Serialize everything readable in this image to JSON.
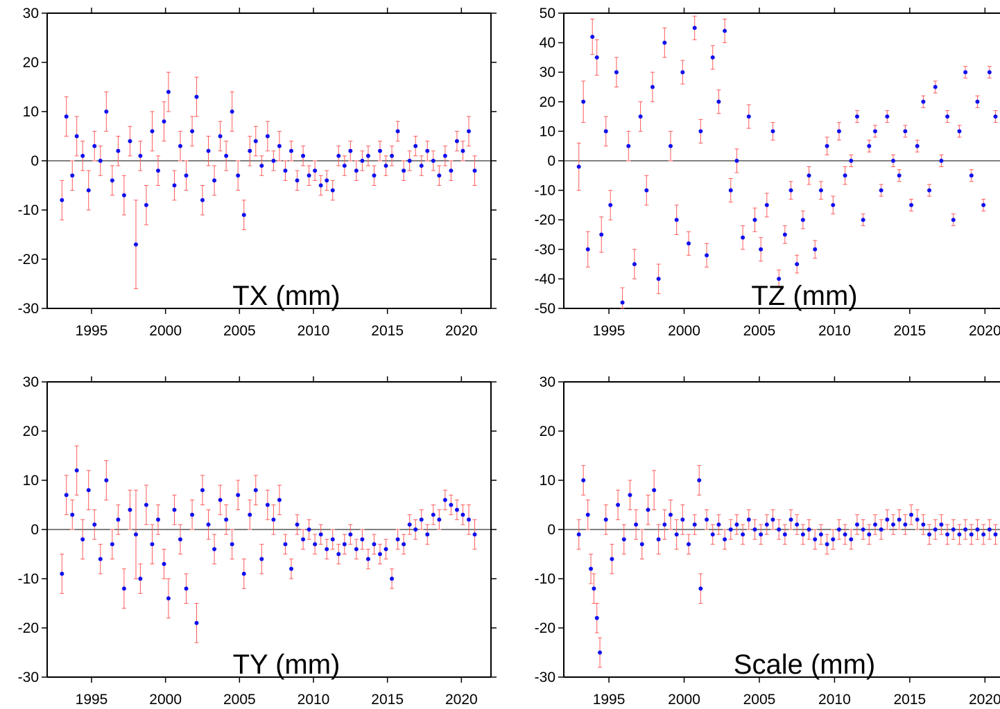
{
  "colors": {
    "point": "#1010ee",
    "error_bar": "#ff5a5a",
    "axis": "#000000",
    "zero_line": "#000000"
  },
  "chart_data": [
    {
      "type": "scatter",
      "title": "TX (mm)",
      "x_range": [
        1992,
        2022
      ],
      "ylim": [
        -30,
        30
      ],
      "y_ticks": [
        30,
        20,
        10,
        0,
        -10,
        -20,
        -30
      ],
      "x_ticks": [
        1995,
        2000,
        2005,
        2010,
        2015,
        2020
      ],
      "zero_line": true,
      "series": [
        {
          "x": [
            1993.0,
            1993.3,
            1993.7,
            1994.0,
            1994.4,
            1994.8,
            1995.2,
            1995.6,
            1996.0,
            1996.4,
            1996.8,
            1997.2,
            1997.6,
            1998.0,
            1998.3,
            1998.7,
            1999.1,
            1999.5,
            1999.9,
            2000.2,
            2000.6,
            2001.0,
            2001.4,
            2001.8,
            2002.1,
            2002.5,
            2002.9,
            2003.3,
            2003.7,
            2004.1,
            2004.5,
            2004.9,
            2005.3,
            2005.7,
            2006.1,
            2006.5,
            2006.9,
            2007.3,
            2007.7,
            2008.1,
            2008.5,
            2008.9,
            2009.3,
            2009.7,
            2010.1,
            2010.5,
            2010.9,
            2011.3,
            2011.7,
            2012.1,
            2012.5,
            2012.9,
            2013.3,
            2013.7,
            2014.1,
            2014.5,
            2014.9,
            2015.3,
            2015.7,
            2016.1,
            2016.5,
            2016.9,
            2017.3,
            2017.7,
            2018.1,
            2018.5,
            2018.9,
            2019.3,
            2019.7,
            2020.1,
            2020.5,
            2020.9
          ],
          "y": [
            -8,
            9,
            -3,
            5,
            1,
            -6,
            3,
            0,
            10,
            -4,
            2,
            -7,
            4,
            -17,
            1,
            -9,
            6,
            -2,
            8,
            14,
            -5,
            3,
            -3,
            6,
            13,
            -8,
            2,
            -4,
            5,
            1,
            10,
            -3,
            -11,
            2,
            4,
            -1,
            5,
            0,
            3,
            -2,
            2,
            -4,
            1,
            -3,
            -2,
            -5,
            -4,
            -6,
            1,
            -1,
            2,
            -2,
            0,
            1,
            -3,
            2,
            -1,
            1,
            6,
            -2,
            0,
            3,
            -1,
            2,
            0,
            -3,
            1,
            -2,
            4,
            2,
            6,
            -2
          ],
          "error": [
            4,
            4,
            3,
            4,
            3,
            4,
            3,
            3,
            4,
            3,
            3,
            4,
            3,
            9,
            3,
            4,
            4,
            3,
            4,
            4,
            3,
            3,
            3,
            3,
            4,
            3,
            3,
            3,
            3,
            3,
            4,
            3,
            3,
            3,
            3,
            2,
            3,
            2,
            3,
            2,
            2,
            2,
            2,
            2,
            2,
            2,
            2,
            2,
            2,
            2,
            2,
            2,
            2,
            2,
            2,
            2,
            2,
            2,
            2,
            2,
            2,
            2,
            2,
            2,
            2,
            2,
            2,
            2,
            2,
            2,
            3,
            3
          ]
        }
      ]
    },
    {
      "type": "scatter",
      "title": "TZ (mm)",
      "x_range": [
        1992,
        2021
      ],
      "ylim": [
        -50,
        50
      ],
      "y_ticks": [
        50,
        40,
        30,
        20,
        10,
        0,
        -10,
        -20,
        -30,
        -40,
        -50
      ],
      "x_ticks": [
        1995,
        2000,
        2005,
        2010,
        2015,
        2020
      ],
      "zero_line": true,
      "series": [
        {
          "x": [
            1993.0,
            1993.3,
            1993.6,
            1993.9,
            1994.2,
            1994.5,
            1994.8,
            1995.1,
            1995.5,
            1995.9,
            1996.3,
            1996.7,
            1997.1,
            1997.5,
            1997.9,
            1998.3,
            1998.7,
            1999.1,
            1999.5,
            1999.9,
            2000.3,
            2000.7,
            2001.1,
            2001.5,
            2001.9,
            2002.3,
            2002.7,
            2003.1,
            2003.5,
            2003.9,
            2004.3,
            2004.7,
            2005.1,
            2005.5,
            2005.9,
            2006.3,
            2006.7,
            2007.1,
            2007.5,
            2007.9,
            2008.3,
            2008.7,
            2009.1,
            2009.5,
            2009.9,
            2010.3,
            2010.7,
            2011.1,
            2011.5,
            2011.9,
            2012.3,
            2012.7,
            2013.1,
            2013.5,
            2013.9,
            2014.3,
            2014.7,
            2015.1,
            2015.5,
            2015.9,
            2016.3,
            2016.7,
            2017.1,
            2017.5,
            2017.9,
            2018.3,
            2018.7,
            2019.1,
            2019.5,
            2019.9,
            2020.3,
            2020.7
          ],
          "y": [
            -2,
            20,
            -30,
            42,
            35,
            -25,
            10,
            -15,
            30,
            -48,
            5,
            -35,
            15,
            -10,
            25,
            -40,
            40,
            5,
            -20,
            30,
            -28,
            45,
            10,
            -32,
            35,
            20,
            44,
            -10,
            0,
            -26,
            15,
            -20,
            -30,
            -15,
            10,
            -40,
            -25,
            -10,
            -35,
            -20,
            -5,
            -30,
            -10,
            5,
            -15,
            10,
            -5,
            0,
            15,
            -20,
            5,
            10,
            -10,
            15,
            0,
            -5,
            10,
            -15,
            5,
            20,
            -10,
            25,
            0,
            15,
            -20,
            10,
            30,
            -5,
            20,
            -15,
            30,
            15
          ],
          "error": [
            8,
            7,
            6,
            6,
            6,
            6,
            5,
            5,
            5,
            5,
            5,
            5,
            5,
            5,
            5,
            5,
            5,
            5,
            5,
            4,
            4,
            4,
            4,
            4,
            4,
            4,
            4,
            4,
            4,
            4,
            4,
            4,
            4,
            4,
            3,
            3,
            3,
            3,
            3,
            3,
            3,
            3,
            3,
            3,
            3,
            3,
            3,
            2,
            2,
            2,
            2,
            2,
            2,
            2,
            2,
            2,
            2,
            2,
            2,
            2,
            2,
            2,
            2,
            2,
            2,
            2,
            2,
            2,
            2,
            2,
            2,
            2
          ]
        }
      ]
    },
    {
      "type": "scatter",
      "title": "TY (mm)",
      "x_range": [
        1992,
        2022
      ],
      "ylim": [
        -30,
        30
      ],
      "y_ticks": [
        30,
        20,
        10,
        0,
        -10,
        -20,
        -30
      ],
      "x_ticks": [
        1995,
        2000,
        2005,
        2010,
        2015,
        2020
      ],
      "zero_line": true,
      "series": [
        {
          "x": [
            1993.0,
            1993.3,
            1993.7,
            1994.0,
            1994.4,
            1994.8,
            1995.2,
            1995.6,
            1996.0,
            1996.4,
            1996.8,
            1997.2,
            1997.6,
            1998.0,
            1998.3,
            1998.7,
            1999.1,
            1999.5,
            1999.9,
            2000.2,
            2000.6,
            2001.0,
            2001.4,
            2001.8,
            2002.1,
            2002.5,
            2002.9,
            2003.3,
            2003.7,
            2004.1,
            2004.5,
            2004.9,
            2005.3,
            2005.7,
            2006.1,
            2006.5,
            2006.9,
            2007.3,
            2007.7,
            2008.1,
            2008.5,
            2008.9,
            2009.3,
            2009.7,
            2010.1,
            2010.5,
            2010.9,
            2011.3,
            2011.7,
            2012.1,
            2012.5,
            2012.9,
            2013.3,
            2013.7,
            2014.1,
            2014.5,
            2014.9,
            2015.3,
            2015.7,
            2016.1,
            2016.5,
            2016.9,
            2017.3,
            2017.7,
            2018.1,
            2018.5,
            2018.9,
            2019.3,
            2019.7,
            2020.1,
            2020.5,
            2020.9
          ],
          "y": [
            -9,
            7,
            3,
            12,
            -2,
            8,
            1,
            -6,
            10,
            -3,
            2,
            -12,
            4,
            -1,
            -10,
            5,
            -3,
            2,
            -7,
            -14,
            4,
            -2,
            -12,
            3,
            -19,
            8,
            1,
            -4,
            6,
            2,
            -3,
            7,
            -9,
            3,
            8,
            -6,
            5,
            2,
            6,
            -3,
            -8,
            1,
            -2,
            0,
            -3,
            -1,
            -4,
            -2,
            -5,
            -3,
            -1,
            -4,
            -2,
            -6,
            -3,
            -5,
            -4,
            -10,
            -2,
            -3,
            1,
            0,
            2,
            -1,
            3,
            2,
            6,
            5,
            4,
            3,
            2,
            -1
          ],
          "error": [
            4,
            4,
            3,
            5,
            4,
            4,
            3,
            3,
            4,
            3,
            3,
            4,
            4,
            9,
            3,
            4,
            4,
            3,
            3,
            4,
            3,
            3,
            3,
            3,
            4,
            3,
            3,
            3,
            3,
            3,
            3,
            3,
            3,
            3,
            3,
            3,
            3,
            3,
            3,
            2,
            2,
            2,
            2,
            2,
            2,
            2,
            2,
            2,
            2,
            2,
            2,
            2,
            2,
            2,
            2,
            2,
            2,
            2,
            2,
            2,
            2,
            2,
            2,
            2,
            2,
            2,
            2,
            2,
            2,
            2,
            3,
            3
          ]
        }
      ]
    },
    {
      "type": "scatter",
      "title": "Scale (mm)",
      "x_range": [
        1992,
        2021
      ],
      "ylim": [
        -30,
        30
      ],
      "y_ticks": [
        30,
        20,
        10,
        0,
        -10,
        -20,
        -30
      ],
      "x_ticks": [
        1995,
        2000,
        2005,
        2010,
        2015,
        2020
      ],
      "zero_line": true,
      "series": [
        {
          "x": [
            1993.0,
            1993.3,
            1993.6,
            1993.8,
            1994.0,
            1994.2,
            1994.4,
            1994.8,
            1995.2,
            1995.6,
            1996.0,
            1996.4,
            1996.8,
            1997.2,
            1997.6,
            1998.0,
            1998.3,
            1998.7,
            1999.1,
            1999.5,
            1999.9,
            2000.3,
            2000.7,
            2001.0,
            2001.1,
            2001.5,
            2001.9,
            2002.3,
            2002.7,
            2003.1,
            2003.5,
            2003.9,
            2004.3,
            2004.7,
            2005.1,
            2005.5,
            2005.9,
            2006.3,
            2006.7,
            2007.1,
            2007.5,
            2007.9,
            2008.3,
            2008.7,
            2009.1,
            2009.5,
            2009.9,
            2010.3,
            2010.7,
            2011.1,
            2011.5,
            2011.9,
            2012.3,
            2012.7,
            2013.1,
            2013.5,
            2013.9,
            2014.3,
            2014.7,
            2015.1,
            2015.5,
            2015.9,
            2016.3,
            2016.7,
            2017.1,
            2017.5,
            2017.9,
            2018.3,
            2018.7,
            2019.1,
            2019.5,
            2019.9,
            2020.3,
            2020.7
          ],
          "y": [
            -1,
            10,
            3,
            -8,
            -12,
            -18,
            -25,
            2,
            -6,
            5,
            -2,
            7,
            1,
            -3,
            4,
            8,
            -2,
            1,
            3,
            -1,
            2,
            -3,
            1,
            10,
            -12,
            2,
            -1,
            1,
            -2,
            0,
            1,
            -1,
            2,
            0,
            -1,
            1,
            2,
            0,
            -1,
            2,
            1,
            -1,
            0,
            -2,
            -1,
            -3,
            -2,
            0,
            -1,
            -2,
            1,
            0,
            -1,
            1,
            0,
            2,
            1,
            2,
            1,
            3,
            2,
            1,
            -1,
            0,
            1,
            -1,
            0,
            -1,
            0,
            -1,
            0,
            -1,
            0,
            -1
          ],
          "error": [
            3,
            3,
            3,
            3,
            3,
            3,
            3,
            3,
            3,
            3,
            3,
            3,
            3,
            3,
            3,
            4,
            3,
            3,
            3,
            3,
            3,
            2,
            2,
            3,
            3,
            2,
            2,
            2,
            2,
            2,
            2,
            2,
            2,
            2,
            2,
            2,
            2,
            2,
            2,
            2,
            2,
            2,
            2,
            2,
            2,
            2,
            2,
            2,
            2,
            2,
            2,
            2,
            2,
            2,
            2,
            2,
            2,
            2,
            2,
            2,
            2,
            2,
            2,
            2,
            2,
            2,
            2,
            2,
            2,
            2,
            2,
            2,
            2,
            2
          ]
        }
      ]
    }
  ]
}
